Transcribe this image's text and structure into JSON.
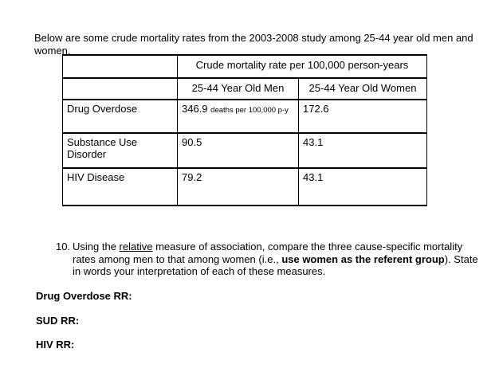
{
  "page": {
    "background": "#ffffff",
    "text_color": "#000000"
  },
  "intro_paragraph": "Below are some crude mortality rates from the 2003-2008 study among 25-44 year old men and women.",
  "table": {
    "header_title": "Crude mortality rate per 100,000 person-years",
    "columns": [
      "25-44 Year Old Men",
      "25-44 Year Old Women"
    ],
    "rows": [
      {
        "label": "Drug Overdose",
        "men_value": "346.9",
        "men_unit": "deaths per 100,000 p-y",
        "women_value": "172.6"
      },
      {
        "label": "Substance Use Disorder",
        "men_value": "90.5",
        "men_unit": "",
        "women_value": "43.1"
      },
      {
        "label": "HIV Disease",
        "men_value": "79.2",
        "men_unit": "",
        "women_value": "43.1"
      }
    ]
  },
  "question": {
    "number": "10.",
    "text_before_underline": "Using the ",
    "underlined_text": "relative",
    "text_middle": " measure of association, compare the three cause-specific mortality rates among men to that among women (i.e., ",
    "bold_text": "use women as the referent group",
    "text_after": "). State in words your interpretation of each of these measures."
  },
  "answer_prompts": {
    "drug_overdose": "Drug Overdose RR:",
    "sud": "SUD RR:",
    "hiv": "HIV RR:"
  }
}
